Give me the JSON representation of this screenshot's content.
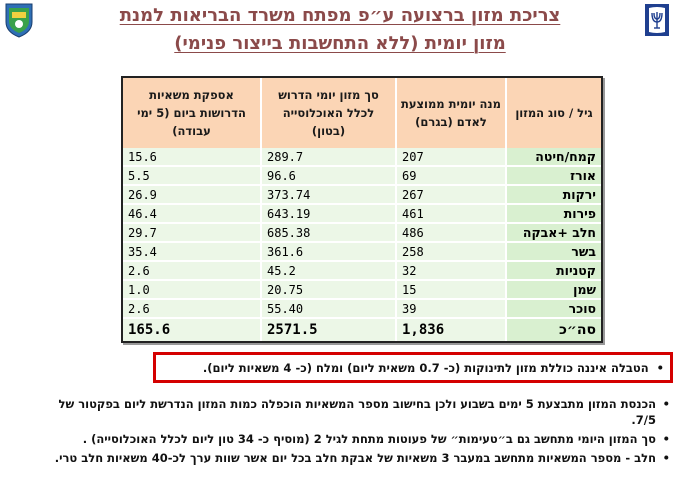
{
  "header": {
    "title_line1": "צריכת מזון ברצועה ע״פ מפתח משרד הבריאות למנת",
    "title_line2": "מזון יומית (ללא התחשבות בייצור פנימי)"
  },
  "table": {
    "headers": [
      "גיל / סוג המזון",
      "מנה יומית ממוצעת לאדם (בגרם)",
      "סך מזון יומי הדרוש לכלל האוכלוסייה (בטון)",
      "אספקת משאיות הדרושות ביום (5 ימי עבודה)"
    ],
    "rows": [
      {
        "category": "קמח/חיטה",
        "daily_portion": "207",
        "daily_total": "289.7",
        "trucks": "15.6"
      },
      {
        "category": "אורז",
        "daily_portion": "69",
        "daily_total": "96.6",
        "trucks": "5.5"
      },
      {
        "category": "ירקות",
        "daily_portion": "267",
        "daily_total": "373.74",
        "trucks": "26.9"
      },
      {
        "category": "פירות",
        "daily_portion": "461",
        "daily_total": "643.19",
        "trucks": "46.4"
      },
      {
        "category": "חלב +אבקה",
        "daily_portion": "486",
        "daily_total": "685.38",
        "trucks": "29.7"
      },
      {
        "category": "בשר",
        "daily_portion": "258",
        "daily_total": "361.6",
        "trucks": "35.4"
      },
      {
        "category": "קטניות",
        "daily_portion": "32",
        "daily_total": "45.2",
        "trucks": "2.6"
      },
      {
        "category": "שמן",
        "daily_portion": "15",
        "daily_total": "20.75",
        "trucks": "1.0"
      },
      {
        "category": "סוכר",
        "daily_portion": "39",
        "daily_total": "55.40",
        "trucks": "2.6"
      }
    ],
    "total": {
      "category": "סה״כ",
      "daily_portion": "1,836",
      "daily_total": "2571.5",
      "trucks": "165.6"
    }
  },
  "notes": {
    "boxed": "הטבלה איננה כוללת מזון לתינוקות (כ- 0.7 משאית ליום) ומלח (כ- 4 משאיות ליום).",
    "items": [
      "הכנסת המזון מתבצעת 5 ימים בשבוע ולכן בחישוב מספר המשאיות הוכפלה כמות המזון הנדרשת ליום בפקטור של 7/5.",
      "סך המזון היומי מתחשב גם ב״טעימות״ של פעוטות מתחת לגיל 2 (מוסיף כ- 34 טון ליום לכלל האוכלוסייה) .",
      "חלב - מספר המשאיות מתחשב במעבר 3 משאיות של אבקת חלב בכל יום אשר שוות ערך לכ-40 משאיות חלב טרי."
    ],
    "bullet": "•"
  },
  "colors": {
    "title": "#8b4a4a",
    "header_bg": "#fbd5b5",
    "category_bg": "#d9f0d0",
    "value_bg": "#ecf7e7",
    "note_border": "#d40000"
  },
  "icons": [
    "regional-emblem-icon",
    "state-emblem-menorah-icon"
  ]
}
